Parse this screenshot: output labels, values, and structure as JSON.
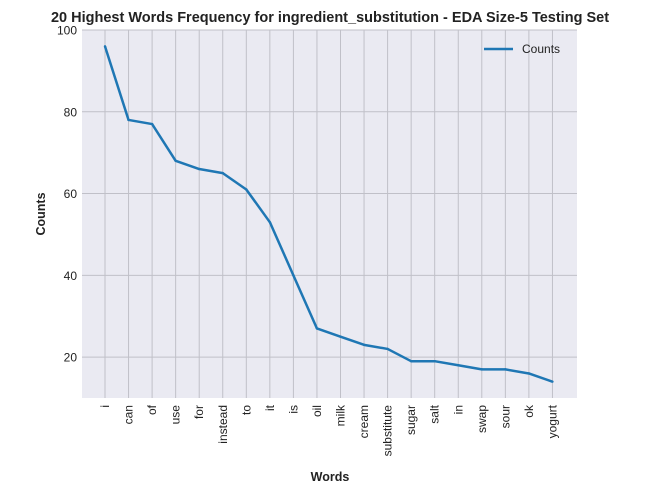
{
  "chart_data": {
    "type": "line",
    "title": "20 Highest Words Frequency for ingredient_substitution - EDA Size-5 Testing Set",
    "xlabel": "Words",
    "ylabel": "Counts",
    "categories": [
      "i",
      "can",
      "of",
      "use",
      "for",
      "instead",
      "to",
      "it",
      "is",
      "oil",
      "milk",
      "cream",
      "substitute",
      "sugar",
      "salt",
      "in",
      "swap",
      "sour",
      "ok",
      "yogurt"
    ],
    "series": [
      {
        "name": "Counts",
        "values": [
          96,
          78,
          77,
          68,
          66,
          65,
          61,
          53,
          40,
          27,
          25,
          23,
          22,
          19,
          19,
          18,
          17,
          17,
          16,
          14
        ]
      }
    ],
    "ylim": [
      10,
      100
    ],
    "yticks": [
      "20",
      "40",
      "60",
      "80",
      "100"
    ],
    "grid": true,
    "legend_position": "top-right",
    "colors": {
      "line": "#1f77b4",
      "plot_background": "#eaeaf2",
      "grid": "#c0c0c8"
    }
  }
}
